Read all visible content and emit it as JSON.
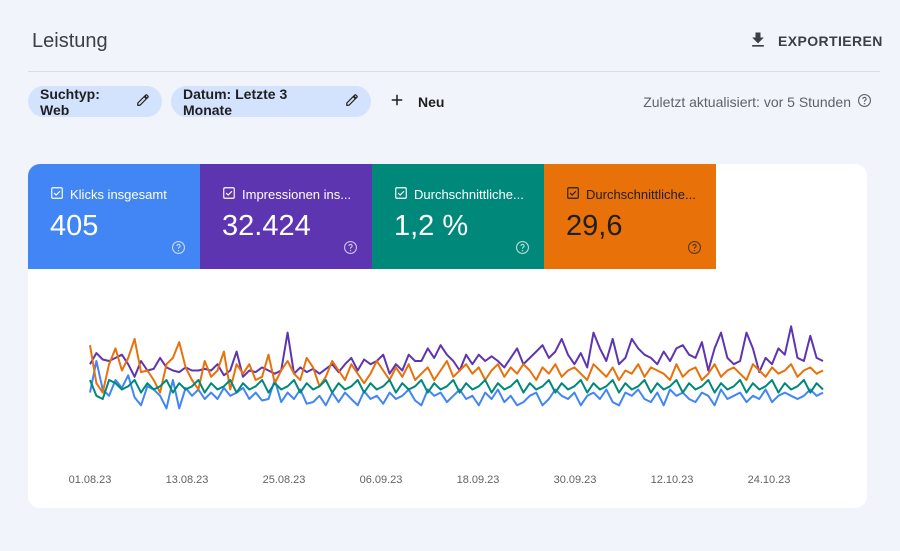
{
  "header": {
    "title": "Leistung",
    "export_label": "EXPORTIEREN",
    "export_icon": "download-icon"
  },
  "filters": {
    "chips": [
      {
        "label": "Suchtyp: Web",
        "icon": "edit-pencil-icon"
      },
      {
        "label": "Datum: Letzte 3 Monate",
        "icon": "edit-pencil-icon"
      }
    ],
    "new_label": "Neu",
    "new_icon": "plus-icon",
    "updated_text": "Zuletzt aktualisiert: vor 5 Stunden",
    "updated_icon": "help-circle-icon"
  },
  "metrics": [
    {
      "label": "Klicks insgesamt",
      "value": "405",
      "color": "#4285f4",
      "checked": true
    },
    {
      "label": "Impressionen ins...",
      "value": "32.424",
      "color": "#5e35b1",
      "checked": true
    },
    {
      "label": "Durchschnittliche...",
      "value": "1,2 %",
      "color": "#00897b",
      "checked": true
    },
    {
      "label": "Durchschnittliche...",
      "value": "29,6",
      "color": "#e8710a",
      "checked": true
    }
  ],
  "chart_data": {
    "type": "line",
    "x_tick_labels": [
      "01.08.23",
      "13.08.23",
      "25.08.23",
      "06.09.23",
      "18.09.23",
      "30.09.23",
      "12.10.23",
      "24.10.23"
    ],
    "grid": false,
    "y_axis_hidden": true,
    "series_colors": [
      "#5e35b1",
      "#4285f4",
      "#e8710a",
      "#00897b"
    ],
    "series": [
      {
        "values": [
          0.4,
          0.33,
          0.37,
          0.38,
          0.36,
          0.34,
          0.4,
          0.48,
          0.38,
          0.44,
          0.43,
          0.36,
          0.42,
          0.44,
          0.45,
          0.42,
          0.44,
          0.44,
          0.43,
          0.44,
          0.4,
          0.47,
          0.44,
          0.32,
          0.48,
          0.44,
          0.45,
          0.42,
          0.44,
          0.46,
          0.44,
          0.2,
          0.46,
          0.42,
          0.45,
          0.43,
          0.46,
          0.43,
          0.4,
          0.45,
          0.4,
          0.36,
          0.44,
          0.37,
          0.4,
          0.38,
          0.34,
          0.46,
          0.4,
          0.44,
          0.34,
          0.38,
          0.38,
          0.3,
          0.36,
          0.28,
          0.34,
          0.38,
          0.44,
          0.34,
          0.4,
          0.34,
          0.38,
          0.35,
          0.38,
          0.42,
          0.36,
          0.3,
          0.4,
          0.36,
          0.32,
          0.28,
          0.36,
          0.32,
          0.24,
          0.34,
          0.4,
          0.33,
          0.42,
          0.2,
          0.3,
          0.38,
          0.24,
          0.4,
          0.36,
          0.24,
          0.3,
          0.34,
          0.36,
          0.4,
          0.32,
          0.38,
          0.3,
          0.28,
          0.34,
          0.36,
          0.26,
          0.44,
          0.3,
          0.2,
          0.36,
          0.4,
          0.38,
          0.2,
          0.3,
          0.45,
          0.36,
          0.4,
          0.3,
          0.34,
          0.16,
          0.36,
          0.38,
          0.22,
          0.36,
          0.38
        ]
      },
      {
        "values": [
          0.58,
          0.38,
          0.56,
          0.6,
          0.5,
          0.55,
          0.47,
          0.61,
          0.66,
          0.54,
          0.56,
          0.6,
          0.68,
          0.5,
          0.68,
          0.55,
          0.6,
          0.56,
          0.62,
          0.58,
          0.62,
          0.55,
          0.6,
          0.58,
          0.55,
          0.62,
          0.58,
          0.63,
          0.62,
          0.5,
          0.64,
          0.58,
          0.62,
          0.56,
          0.65,
          0.64,
          0.6,
          0.66,
          0.58,
          0.64,
          0.58,
          0.62,
          0.66,
          0.57,
          0.62,
          0.6,
          0.65,
          0.58,
          0.62,
          0.6,
          0.56,
          0.63,
          0.66,
          0.56,
          0.6,
          0.58,
          0.64,
          0.6,
          0.56,
          0.62,
          0.6,
          0.66,
          0.58,
          0.62,
          0.56,
          0.64,
          0.6,
          0.66,
          0.64,
          0.6,
          0.58,
          0.66,
          0.62,
          0.56,
          0.6,
          0.62,
          0.58,
          0.66,
          0.6,
          0.58,
          0.62,
          0.56,
          0.64,
          0.66,
          0.58,
          0.6,
          0.56,
          0.62,
          0.64,
          0.58,
          0.66,
          0.56,
          0.6,
          0.58,
          0.62,
          0.64,
          0.58,
          0.6,
          0.66,
          0.56,
          0.62,
          0.6,
          0.58,
          0.64,
          0.6,
          0.62,
          0.56,
          0.64,
          0.6,
          0.58,
          0.6,
          0.62,
          0.6,
          0.56,
          0.6,
          0.58
        ]
      },
      {
        "values": [
          0.28,
          0.52,
          0.58,
          0.4,
          0.3,
          0.44,
          0.36,
          0.24,
          0.45,
          0.44,
          0.5,
          0.58,
          0.4,
          0.36,
          0.26,
          0.42,
          0.5,
          0.56,
          0.38,
          0.48,
          0.44,
          0.32,
          0.56,
          0.4,
          0.46,
          0.4,
          0.5,
          0.48,
          0.34,
          0.52,
          0.44,
          0.38,
          0.46,
          0.5,
          0.36,
          0.42,
          0.54,
          0.48,
          0.38,
          0.44,
          0.5,
          0.4,
          0.46,
          0.52,
          0.46,
          0.38,
          0.44,
          0.5,
          0.42,
          0.48,
          0.4,
          0.5,
          0.46,
          0.42,
          0.5,
          0.44,
          0.38,
          0.48,
          0.44,
          0.4,
          0.46,
          0.42,
          0.5,
          0.44,
          0.4,
          0.48,
          0.42,
          0.46,
          0.4,
          0.44,
          0.5,
          0.42,
          0.46,
          0.4,
          0.48,
          0.44,
          0.42,
          0.46,
          0.5,
          0.4,
          0.44,
          0.48,
          0.42,
          0.5,
          0.44,
          0.46,
          0.4,
          0.48,
          0.42,
          0.44,
          0.46,
          0.5,
          0.4,
          0.48,
          0.44,
          0.42,
          0.5,
          0.46,
          0.4,
          0.48,
          0.44,
          0.42,
          0.46,
          0.5,
          0.4,
          0.44,
          0.48,
          0.42,
          0.46,
          0.44,
          0.4,
          0.48,
          0.44,
          0.42,
          0.46,
          0.44
        ]
      },
      {
        "values": [
          0.5,
          0.6,
          0.62,
          0.5,
          0.52,
          0.56,
          0.54,
          0.5,
          0.58,
          0.52,
          0.56,
          0.54,
          0.5,
          0.58,
          0.52,
          0.56,
          0.54,
          0.5,
          0.58,
          0.52,
          0.56,
          0.54,
          0.5,
          0.58,
          0.52,
          0.56,
          0.54,
          0.5,
          0.58,
          0.52,
          0.56,
          0.54,
          0.5,
          0.58,
          0.52,
          0.56,
          0.54,
          0.5,
          0.58,
          0.52,
          0.56,
          0.54,
          0.5,
          0.58,
          0.52,
          0.56,
          0.54,
          0.5,
          0.58,
          0.52,
          0.56,
          0.54,
          0.5,
          0.58,
          0.52,
          0.56,
          0.54,
          0.5,
          0.58,
          0.52,
          0.56,
          0.54,
          0.5,
          0.58,
          0.52,
          0.56,
          0.54,
          0.5,
          0.58,
          0.52,
          0.56,
          0.54,
          0.5,
          0.58,
          0.52,
          0.56,
          0.54,
          0.5,
          0.58,
          0.52,
          0.56,
          0.54,
          0.5,
          0.58,
          0.52,
          0.56,
          0.54,
          0.5,
          0.58,
          0.52,
          0.56,
          0.54,
          0.5,
          0.58,
          0.52,
          0.56,
          0.54,
          0.5,
          0.58,
          0.52,
          0.56,
          0.54,
          0.5,
          0.58,
          0.52,
          0.56,
          0.54,
          0.5,
          0.58,
          0.52,
          0.56,
          0.54,
          0.5,
          0.58,
          0.52,
          0.56
        ]
      }
    ]
  }
}
